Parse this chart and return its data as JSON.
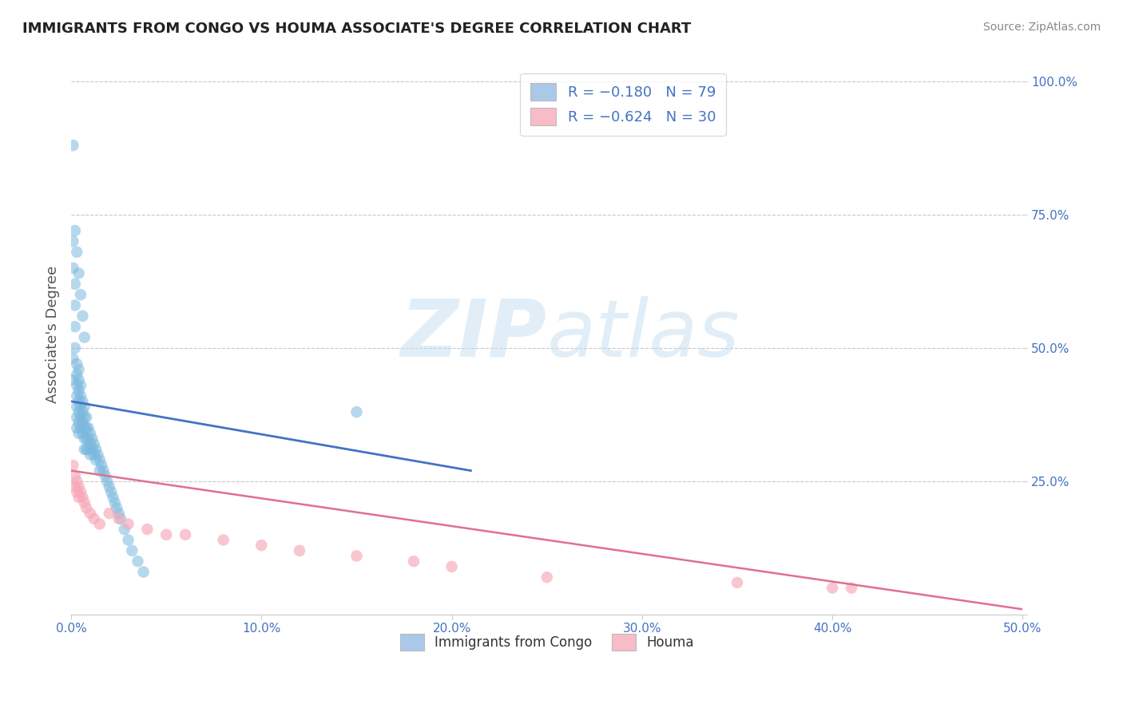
{
  "title": "IMMIGRANTS FROM CONGO VS HOUMA ASSOCIATE'S DEGREE CORRELATION CHART",
  "source": "Source: ZipAtlas.com",
  "ylabel": "Associate's Degree",
  "xlim": [
    0.0,
    0.5
  ],
  "ylim": [
    0.0,
    1.05
  ],
  "xtick_vals": [
    0.0,
    0.1,
    0.2,
    0.3,
    0.4,
    0.5
  ],
  "xticklabels": [
    "0.0%",
    "10.0%",
    "20.0%",
    "30.0%",
    "40.0%",
    "50.0%"
  ],
  "ytick_vals": [
    0.0,
    0.25,
    0.5,
    0.75,
    1.0
  ],
  "yticklabels": [
    "",
    "25.0%",
    "50.0%",
    "75.0%",
    "100.0%"
  ],
  "legend1_label": "R = −0.180   N = 79",
  "legend2_label": "R = −0.624   N = 30",
  "legend_bottom_label1": "Immigrants from Congo",
  "legend_bottom_label2": "Houma",
  "blue_scatter_x": [
    0.001,
    0.001,
    0.001,
    0.002,
    0.002,
    0.002,
    0.002,
    0.003,
    0.003,
    0.003,
    0.003,
    0.003,
    0.003,
    0.003,
    0.004,
    0.004,
    0.004,
    0.004,
    0.004,
    0.004,
    0.004,
    0.005,
    0.005,
    0.005,
    0.005,
    0.005,
    0.006,
    0.006,
    0.006,
    0.006,
    0.007,
    0.007,
    0.007,
    0.007,
    0.007,
    0.008,
    0.008,
    0.008,
    0.008,
    0.009,
    0.009,
    0.009,
    0.01,
    0.01,
    0.01,
    0.011,
    0.011,
    0.012,
    0.012,
    0.013,
    0.013,
    0.014,
    0.015,
    0.015,
    0.016,
    0.017,
    0.018,
    0.019,
    0.02,
    0.021,
    0.022,
    0.023,
    0.024,
    0.025,
    0.026,
    0.028,
    0.03,
    0.032,
    0.035,
    0.038,
    0.002,
    0.003,
    0.004,
    0.005,
    0.006,
    0.007,
    0.001,
    0.001,
    0.15
  ],
  "blue_scatter_y": [
    0.88,
    0.7,
    0.65,
    0.62,
    0.58,
    0.54,
    0.5,
    0.47,
    0.45,
    0.43,
    0.41,
    0.39,
    0.37,
    0.35,
    0.46,
    0.44,
    0.42,
    0.4,
    0.38,
    0.36,
    0.34,
    0.43,
    0.41,
    0.39,
    0.37,
    0.35,
    0.4,
    0.38,
    0.36,
    0.34,
    0.39,
    0.37,
    0.35,
    0.33,
    0.31,
    0.37,
    0.35,
    0.33,
    0.31,
    0.35,
    0.33,
    0.31,
    0.34,
    0.32,
    0.3,
    0.33,
    0.31,
    0.32,
    0.3,
    0.31,
    0.29,
    0.3,
    0.29,
    0.27,
    0.28,
    0.27,
    0.26,
    0.25,
    0.24,
    0.23,
    0.22,
    0.21,
    0.2,
    0.19,
    0.18,
    0.16,
    0.14,
    0.12,
    0.1,
    0.08,
    0.72,
    0.68,
    0.64,
    0.6,
    0.56,
    0.52,
    0.48,
    0.44,
    0.38
  ],
  "pink_scatter_x": [
    0.001,
    0.002,
    0.002,
    0.003,
    0.003,
    0.004,
    0.004,
    0.005,
    0.006,
    0.007,
    0.008,
    0.01,
    0.012,
    0.015,
    0.02,
    0.025,
    0.03,
    0.04,
    0.05,
    0.06,
    0.08,
    0.1,
    0.12,
    0.15,
    0.18,
    0.2,
    0.25,
    0.35,
    0.4,
    0.41
  ],
  "pink_scatter_y": [
    0.28,
    0.26,
    0.24,
    0.25,
    0.23,
    0.24,
    0.22,
    0.23,
    0.22,
    0.21,
    0.2,
    0.19,
    0.18,
    0.17,
    0.19,
    0.18,
    0.17,
    0.16,
    0.15,
    0.15,
    0.14,
    0.13,
    0.12,
    0.11,
    0.1,
    0.09,
    0.07,
    0.06,
    0.05,
    0.05
  ],
  "blue_line_x": [
    0.0,
    0.21
  ],
  "blue_line_y": [
    0.4,
    0.27
  ],
  "pink_line_x": [
    0.0,
    0.5
  ],
  "pink_line_y": [
    0.27,
    0.01
  ],
  "blue_color": "#7ab8de",
  "pink_color": "#f7a8b8",
  "blue_line_color": "#4472c4",
  "pink_line_color": "#e07090",
  "watermark_zip": "ZIP",
  "watermark_atlas": "atlas",
  "background_color": "#ffffff",
  "grid_color": "#c8c8c8"
}
